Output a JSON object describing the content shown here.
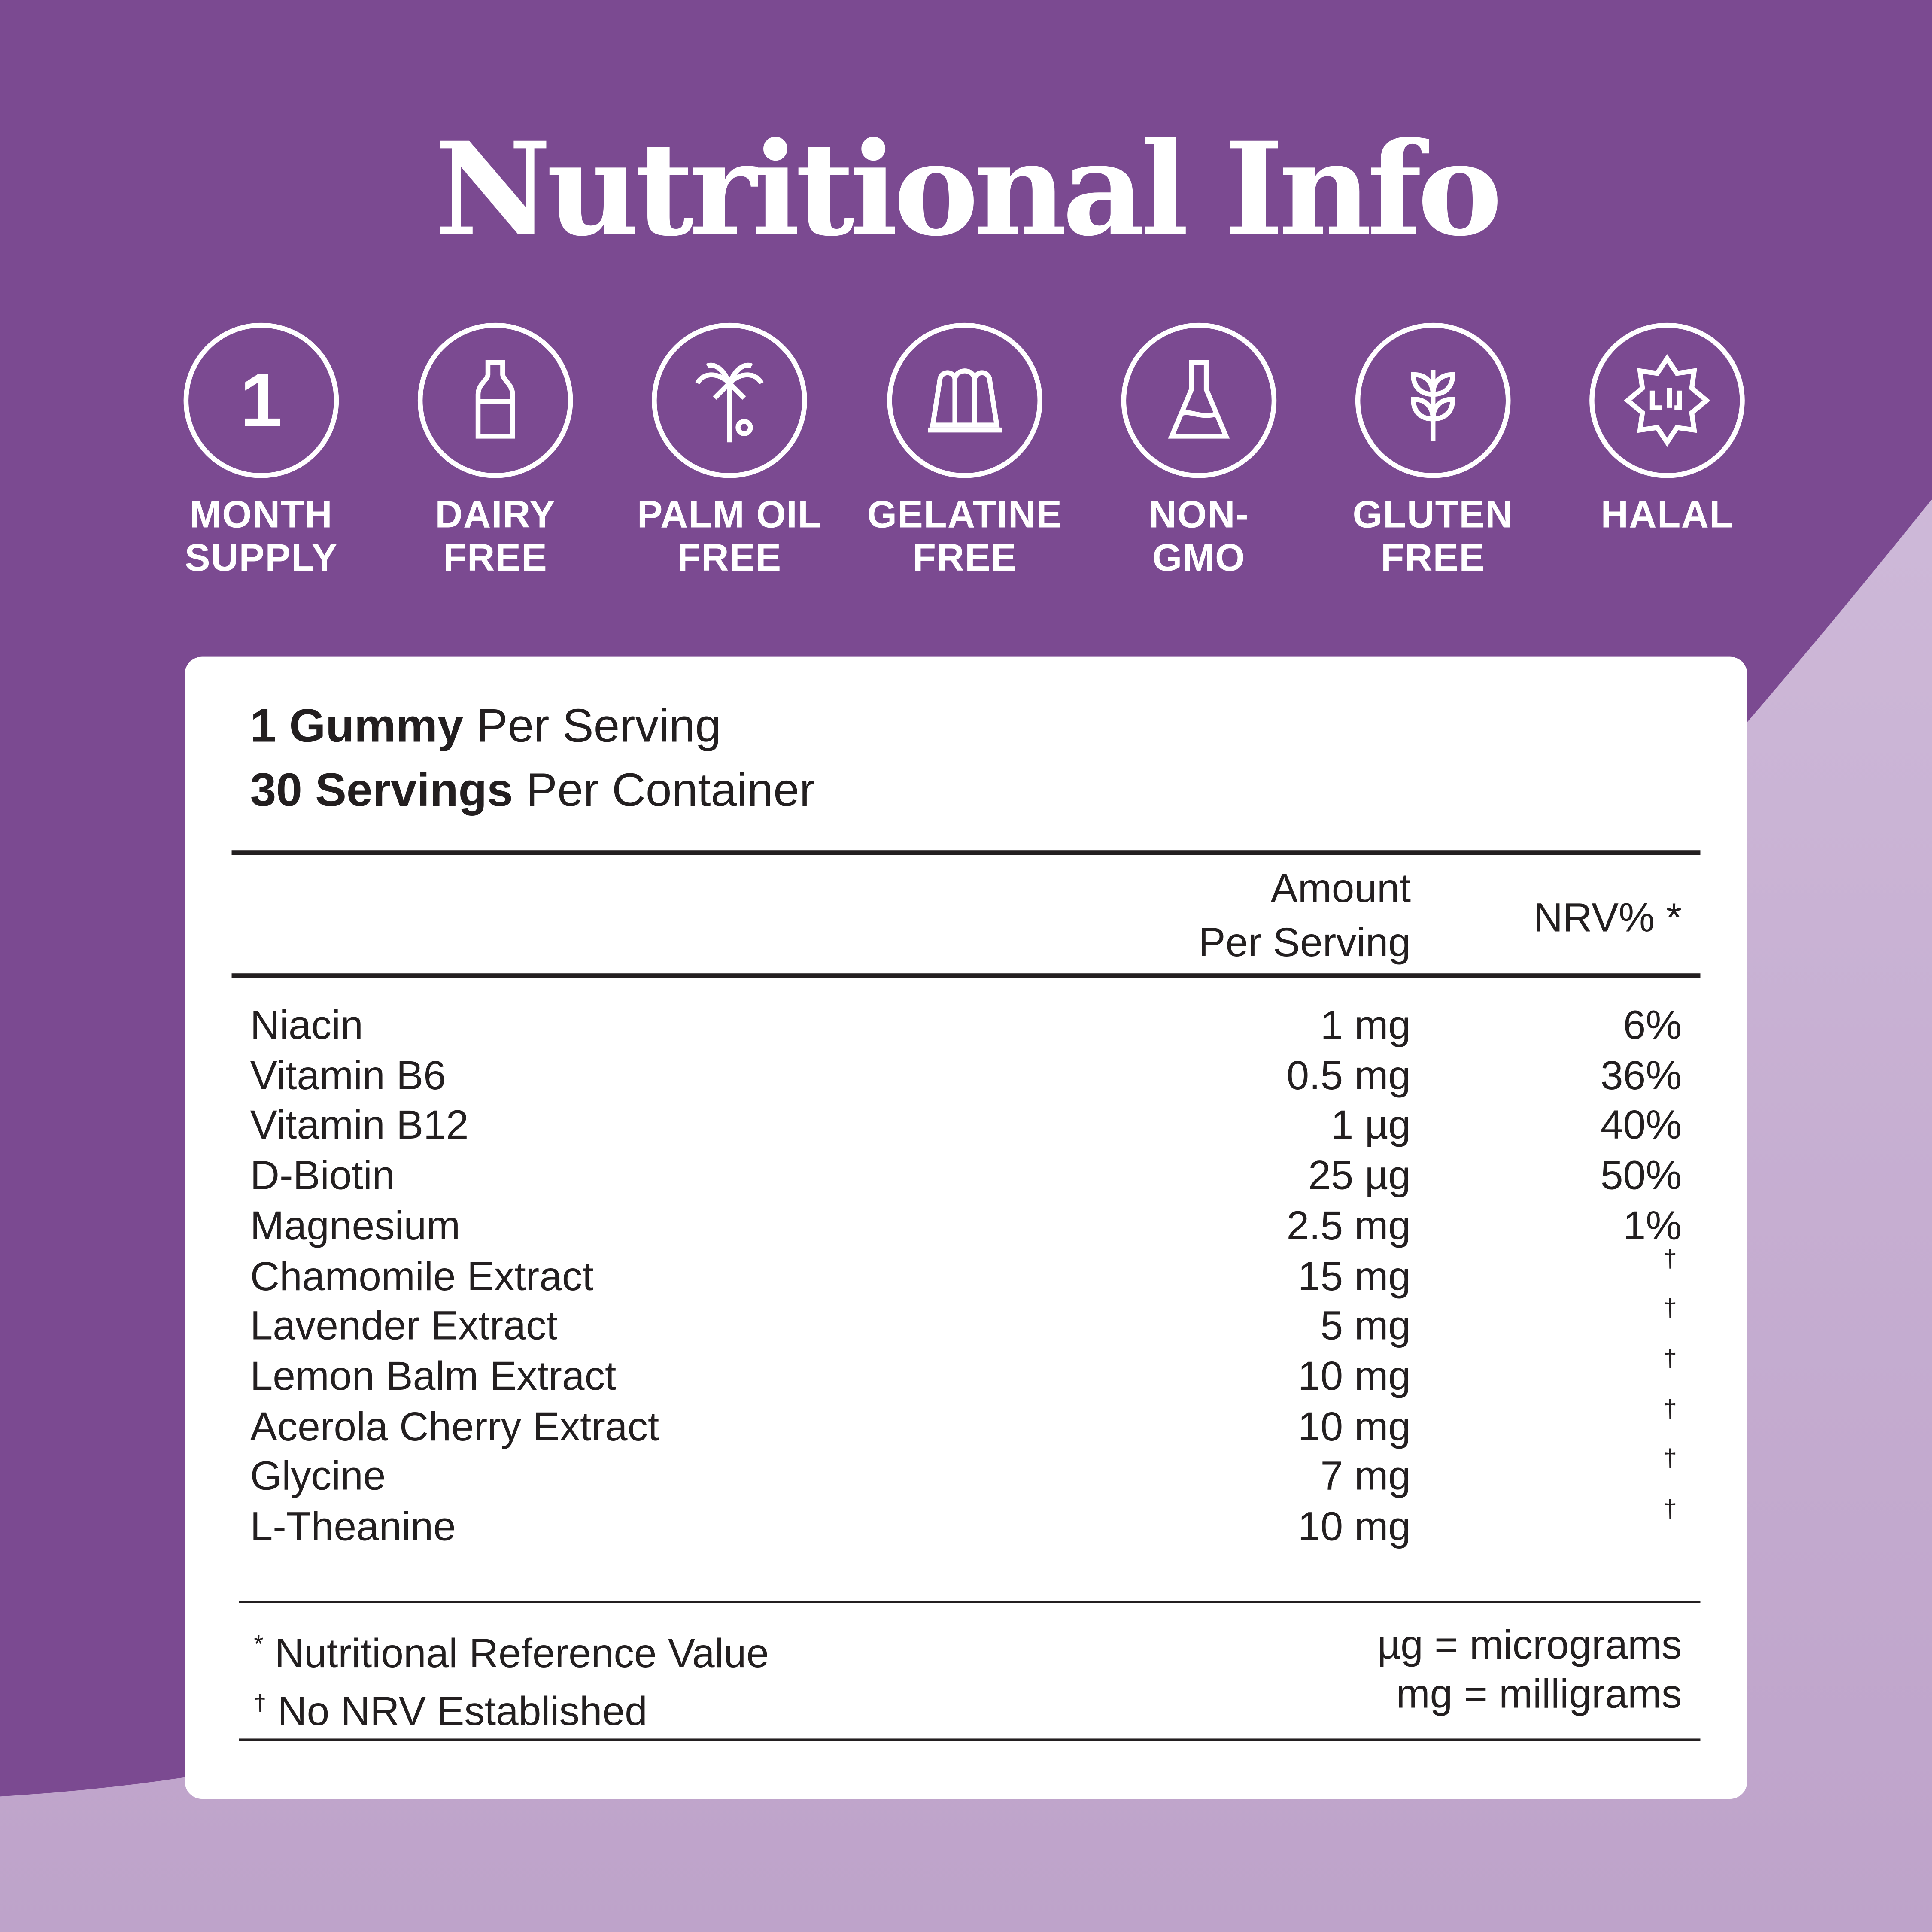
{
  "title": "Nutritional Info",
  "colors": {
    "primary_purple": "#7b4a91",
    "light_lavender": "#cdb9d8",
    "card": "#ffffff",
    "text": "#231f20"
  },
  "badges": [
    {
      "icon": "number-one-icon",
      "glyph": "1",
      "label": "MONTH\nSUPPLY"
    },
    {
      "icon": "milk-bottle-icon",
      "label": "DAIRY\nFREE"
    },
    {
      "icon": "palm-tree-icon",
      "label": "PALM OIL\nFREE"
    },
    {
      "icon": "jelly-mould-icon",
      "label": "GELATINE\nFREE"
    },
    {
      "icon": "flask-icon",
      "label": "NON-\nGMO"
    },
    {
      "icon": "wheat-icon",
      "label": "GLUTEN\nFREE"
    },
    {
      "icon": "halal-seal-icon",
      "label": "HALAL"
    }
  ],
  "serving": {
    "line1_bold": "1 Gummy",
    "line1_rest": " Per Serving",
    "line2_bold": "30 Servings",
    "line2_rest": " Per Container"
  },
  "table": {
    "header_amount_1": "Amount",
    "header_amount_2": "Per Serving",
    "header_nrv": "NRV% *",
    "rows": [
      {
        "name": "Niacin",
        "amount": "1 mg",
        "nrv": "6%"
      },
      {
        "name": "Vitamin B6",
        "amount": "0.5 mg",
        "nrv": "36%"
      },
      {
        "name": "Vitamin B12",
        "amount": "1 µg",
        "nrv": "40%"
      },
      {
        "name": "D-Biotin",
        "amount": "25 µg",
        "nrv": "50%"
      },
      {
        "name": "Magnesium",
        "amount": "2.5 mg",
        "nrv": "1%"
      },
      {
        "name": "Chamomile Extract",
        "amount": "15 mg",
        "nrv": "†"
      },
      {
        "name": "Lavender Extract",
        "amount": "5 mg",
        "nrv": "†"
      },
      {
        "name": "Lemon Balm Extract",
        "amount": "10 mg",
        "nrv": "†"
      },
      {
        "name": "Acerola Cherry Extract",
        "amount": "10 mg",
        "nrv": "†"
      },
      {
        "name": "Glycine",
        "amount": "7 mg",
        "nrv": "†"
      },
      {
        "name": "L-Theanine",
        "amount": "10 mg",
        "nrv": "†"
      }
    ]
  },
  "footnotes": {
    "nrv_mark": "*",
    "nrv": " Nutritional Reference Value",
    "dagger_mark": "†",
    "dagger": " No NRV Established",
    "ug": "µg = micrograms",
    "mg": "mg = milligrams"
  }
}
